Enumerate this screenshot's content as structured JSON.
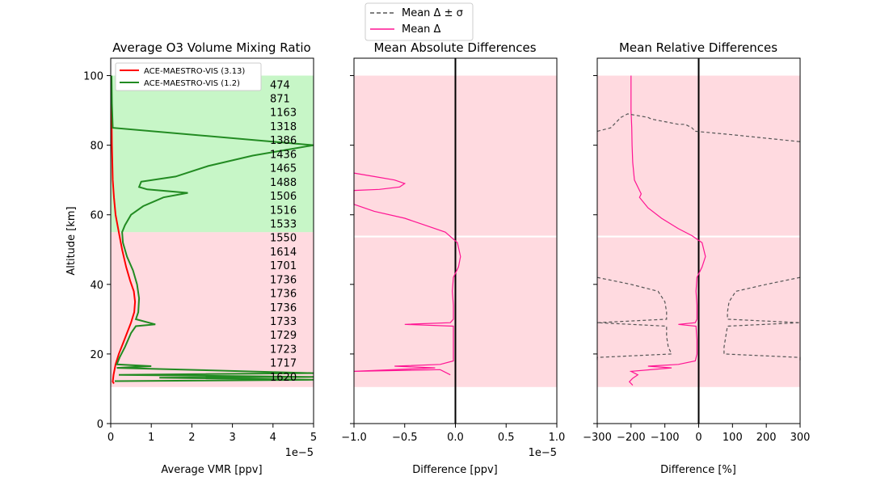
{
  "colors": {
    "old": "#ff0000",
    "new": "#228b22",
    "mean": "#ff1493",
    "std": "#555555",
    "green_fill": "#90ee90",
    "pink_fill": "#ffb6c1",
    "zero_line": "#000000"
  },
  "figure_legend": {
    "items": [
      {
        "label": "Mean Δ ± σ",
        "style": "dashed"
      },
      {
        "label": "Mean Δ",
        "style": "solid"
      }
    ]
  },
  "chart_data": [
    {
      "type": "line",
      "title": "Average O3 Volume Mixing Ratio",
      "xlabel": "Average VMR [ppv]",
      "ylabel": "Altitude [km]",
      "xlim": [
        0,
        5
      ],
      "ylim": [
        0,
        105
      ],
      "x_multiplier": "1e−5",
      "xticks": [
        "0",
        "1",
        "2",
        "3",
        "4",
        "5"
      ],
      "yticks": [
        "0",
        "20",
        "40",
        "60",
        "80",
        "100"
      ],
      "legend": {
        "position": "top-left",
        "entries": [
          "ACE-MAESTRO-VIS (3.13)",
          "ACE-MAESTRO-VIS (1.2)"
        ]
      },
      "counts": [
        {
          "altitude": 97.5,
          "n": "474"
        },
        {
          "altitude": 93.5,
          "n": "871"
        },
        {
          "altitude": 89.5,
          "n": "1163"
        },
        {
          "altitude": 85.5,
          "n": "1318"
        },
        {
          "altitude": 81.5,
          "n": "1386"
        },
        {
          "altitude": 77.5,
          "n": "1436"
        },
        {
          "altitude": 73.5,
          "n": "1465"
        },
        {
          "altitude": 69.5,
          "n": "1488"
        },
        {
          "altitude": 65.5,
          "n": "1506"
        },
        {
          "altitude": 61.5,
          "n": "1516"
        },
        {
          "altitude": 57.5,
          "n": "1533"
        },
        {
          "altitude": 53.5,
          "n": "1550"
        },
        {
          "altitude": 49.5,
          "n": "1614"
        },
        {
          "altitude": 45.5,
          "n": "1701"
        },
        {
          "altitude": 41.5,
          "n": "1736"
        },
        {
          "altitude": 37.5,
          "n": "1736"
        },
        {
          "altitude": 33.5,
          "n": "1736"
        },
        {
          "altitude": 29.5,
          "n": "1733"
        },
        {
          "altitude": 25.5,
          "n": "1729"
        },
        {
          "altitude": 21.5,
          "n": "1723"
        },
        {
          "altitude": 17.5,
          "n": "1717"
        },
        {
          "altitude": 13.5,
          "n": "1620"
        }
      ],
      "series": [
        {
          "name": "ACE-MAESTRO-VIS (3.13)",
          "points": [
            [
              0.02,
              100
            ],
            [
              0.02,
              90
            ],
            [
              0.03,
              80
            ],
            [
              0.05,
              70
            ],
            [
              0.08,
              65
            ],
            [
              0.12,
              60
            ],
            [
              0.2,
              55
            ],
            [
              0.28,
              50
            ],
            [
              0.38,
              45
            ],
            [
              0.48,
              41
            ],
            [
              0.57,
              38
            ],
            [
              0.6,
              35
            ],
            [
              0.58,
              32
            ],
            [
              0.5,
              29
            ],
            [
              0.4,
              26
            ],
            [
              0.3,
              23
            ],
            [
              0.2,
              20
            ],
            [
              0.12,
              17
            ],
            [
              0.07,
              14
            ],
            [
              0.05,
              12
            ],
            [
              0.08,
              11.5
            ]
          ]
        },
        {
          "name": "ACE-MAESTRO-VIS (1.2)",
          "points": [
            [
              0.02,
              100
            ],
            [
              0.03,
              92
            ],
            [
              0.05,
              85
            ],
            [
              5.0,
              80
            ],
            [
              3.5,
              77
            ],
            [
              2.4,
              74
            ],
            [
              1.6,
              71
            ],
            [
              0.75,
              69.5
            ],
            [
              0.7,
              68
            ],
            [
              0.9,
              67.3
            ],
            [
              1.9,
              66.3
            ],
            [
              1.3,
              65
            ],
            [
              0.8,
              62.5
            ],
            [
              0.5,
              60
            ],
            [
              0.35,
              57
            ],
            [
              0.28,
              55
            ],
            [
              0.3,
              52
            ],
            [
              0.4,
              48
            ],
            [
              0.55,
              44
            ],
            [
              0.65,
              40
            ],
            [
              0.7,
              36
            ],
            [
              0.68,
              32
            ],
            [
              0.62,
              30
            ],
            [
              1.1,
              28.5
            ],
            [
              0.62,
              28
            ],
            [
              0.5,
              26
            ],
            [
              0.35,
              22
            ],
            [
              0.22,
              19
            ],
            [
              0.15,
              17
            ],
            [
              1.0,
              16.5
            ],
            [
              0.15,
              16
            ],
            [
              5.0,
              14.5
            ],
            [
              0.2,
              14
            ],
            [
              5.0,
              13.4
            ],
            [
              1.2,
              13.2
            ],
            [
              5.0,
              12.6
            ],
            [
              0.1,
              12.2
            ]
          ]
        }
      ],
      "bands": [
        {
          "color": "green",
          "from": 55,
          "to": 100
        },
        {
          "color": "pink",
          "from": 10.5,
          "to": 55
        }
      ]
    },
    {
      "type": "line",
      "title": "Mean Absolute Differences",
      "xlabel": "Difference [ppv]",
      "xlim": [
        -1.0,
        1.0
      ],
      "ylim": [
        0,
        105
      ],
      "x_multiplier": "1e−5",
      "xticks": [
        "−1.0",
        "−0.5",
        "0.0",
        "0.5",
        "1.0"
      ],
      "series": [
        {
          "name": "Mean Δ",
          "points": [
            [
              -1.0,
              72
            ],
            [
              -0.8,
              71
            ],
            [
              -0.6,
              70
            ],
            [
              -0.5,
              69
            ],
            [
              -0.55,
              68
            ],
            [
              -0.75,
              67.3
            ],
            [
              -1.0,
              67
            ],
            [
              -1.0,
              63
            ],
            [
              -0.8,
              61
            ],
            [
              -0.5,
              59
            ],
            [
              -0.3,
              57
            ],
            [
              -0.1,
              55
            ],
            [
              0.02,
              52
            ],
            [
              0.05,
              48
            ],
            [
              0.03,
              45
            ],
            [
              -0.02,
              42
            ],
            [
              -0.03,
              38
            ],
            [
              -0.02,
              34
            ],
            [
              -0.02,
              30
            ],
            [
              -0.05,
              29
            ],
            [
              -0.5,
              28.5
            ],
            [
              -0.02,
              28
            ],
            [
              -0.02,
              24
            ],
            [
              -0.02,
              20
            ],
            [
              -0.02,
              18
            ],
            [
              -0.15,
              17
            ],
            [
              -0.6,
              16.5
            ],
            [
              -0.2,
              16
            ],
            [
              -1.0,
              15
            ],
            [
              -0.15,
              15.5
            ],
            [
              -0.05,
              14
            ]
          ]
        }
      ],
      "bands": [
        {
          "from": 54,
          "to": 100,
          "shape": "full"
        },
        {
          "from": 10.5,
          "to": 53.5,
          "shape": "full"
        }
      ]
    },
    {
      "type": "line",
      "title": "Mean Relative Differences",
      "xlabel": "Difference [%]",
      "xlim": [
        -300,
        300
      ],
      "ylim": [
        0,
        105
      ],
      "xticks": [
        "−300",
        "−200",
        "−100",
        "0",
        "100",
        "200",
        "300"
      ],
      "series": [
        {
          "name": "Mean Δ",
          "points": [
            [
              -200,
              100
            ],
            [
              -200,
              95
            ],
            [
              -200,
              90
            ],
            [
              -198,
              85
            ],
            [
              -197,
              80
            ],
            [
              -195,
              75
            ],
            [
              -190,
              70
            ],
            [
              -175,
              67
            ],
            [
              -170,
              66
            ],
            [
              -175,
              65
            ],
            [
              -150,
              62
            ],
            [
              -110,
              59
            ],
            [
              -60,
              56
            ],
            [
              -20,
              54
            ],
            [
              10,
              52
            ],
            [
              20,
              48
            ],
            [
              10,
              45
            ],
            [
              -5,
              42
            ],
            [
              -8,
              38
            ],
            [
              -5,
              34
            ],
            [
              -5,
              30
            ],
            [
              -10,
              29
            ],
            [
              -60,
              28.5
            ],
            [
              -8,
              28
            ],
            [
              -5,
              24
            ],
            [
              -5,
              20
            ],
            [
              -10,
              18
            ],
            [
              -60,
              17
            ],
            [
              -150,
              16.5
            ],
            [
              -80,
              16
            ],
            [
              -200,
              15
            ],
            [
              -180,
              14
            ],
            [
              -195,
              13
            ],
            [
              -205,
              12
            ],
            [
              -195,
              11
            ]
          ]
        },
        {
          "name": "Mean Δ ± σ (lower)",
          "points": [
            [
              -300,
              84
            ],
            [
              -260,
              85
            ],
            [
              -230,
              88
            ],
            [
              -210,
              89
            ],
            [
              -150,
              88
            ],
            [
              -140,
              87.5
            ],
            [
              -60,
              86
            ],
            [
              -40,
              86
            ],
            [
              -20,
              85
            ],
            [
              -10,
              84
            ]
          ]
        },
        {
          "name": "Mean Δ ± σ (upper)",
          "points": [
            [
              -10,
              84
            ],
            [
              100,
              83
            ],
            [
              200,
              82
            ],
            [
              300,
              81
            ]
          ]
        },
        {
          "name": "Mean Δ ± σ (left)",
          "points": [
            [
              -300,
              42
            ],
            [
              -200,
              40
            ],
            [
              -120,
              38
            ],
            [
              -100,
              35
            ],
            [
              -95,
              32
            ],
            [
              -95,
              30
            ],
            [
              -300,
              29
            ],
            [
              -95,
              28
            ],
            [
              -95,
              25
            ],
            [
              -90,
              22
            ],
            [
              -80,
              20
            ],
            [
              -300,
              19
            ],
            [
              -300,
              18
            ]
          ]
        },
        {
          "name": "Mean Δ ± σ (right)",
          "points": [
            [
              300,
              42
            ],
            [
              200,
              40
            ],
            [
              110,
              38
            ],
            [
              90,
              35
            ],
            [
              85,
              32
            ],
            [
              85,
              30
            ],
            [
              300,
              29
            ],
            [
              85,
              28
            ],
            [
              80,
              25
            ],
            [
              75,
              22
            ],
            [
              75,
              20
            ],
            [
              300,
              19
            ],
            [
              300,
              18
            ]
          ]
        }
      ],
      "bands": [
        {
          "from": 54,
          "to": 100,
          "shape": "full"
        },
        {
          "from": 10.5,
          "to": 53.5,
          "shape": "full"
        }
      ]
    }
  ]
}
